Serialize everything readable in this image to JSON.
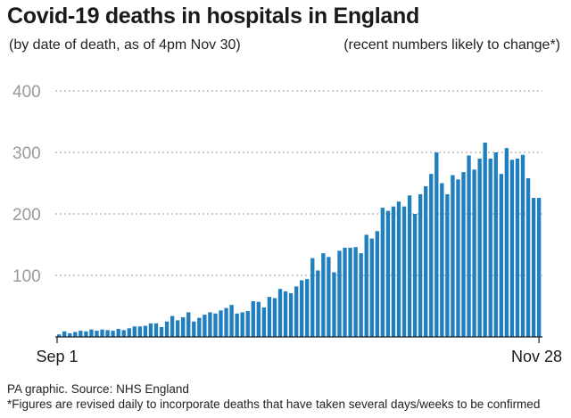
{
  "title": "Covid-19 deaths in hospitals in England",
  "subtitle_left": "(by date of death, as of 4pm Nov 30)",
  "subtitle_right": "(recent numbers likely to change*)",
  "footer_source": "PA graphic. Source: NHS England",
  "footer_note": "*Figures are revised daily to incorporate deaths that have taken several days/weeks to be confirmed",
  "colors": {
    "bar": "#1f7fbf",
    "grid": "#9a9a9a",
    "axis": "#1a1a1a"
  },
  "chart_data": {
    "type": "bar",
    "x_start_label": "Sep 1",
    "x_end_label": "Nov 28",
    "yticks": [
      100,
      200,
      300,
      400
    ],
    "ytick_labels": [
      "100",
      "200",
      "300",
      "400"
    ],
    "ylim": [
      0,
      400
    ],
    "grid": true,
    "values": [
      4,
      9,
      6,
      8,
      10,
      9,
      12,
      10,
      12,
      11,
      10,
      13,
      11,
      14,
      17,
      17,
      18,
      22,
      22,
      16,
      25,
      34,
      27,
      32,
      40,
      25,
      31,
      36,
      40,
      38,
      43,
      47,
      52,
      38,
      40,
      42,
      58,
      57,
      48,
      65,
      63,
      78,
      74,
      71,
      82,
      92,
      94,
      128,
      108,
      136,
      130,
      105,
      140,
      145,
      145,
      146,
      136,
      166,
      160,
      172,
      210,
      205,
      212,
      220,
      212,
      230,
      200,
      232,
      245,
      265,
      300,
      250,
      232,
      263,
      256,
      268,
      295,
      272,
      290,
      316,
      290,
      300,
      265,
      307,
      288,
      290,
      296,
      258,
      226,
      226
    ]
  }
}
